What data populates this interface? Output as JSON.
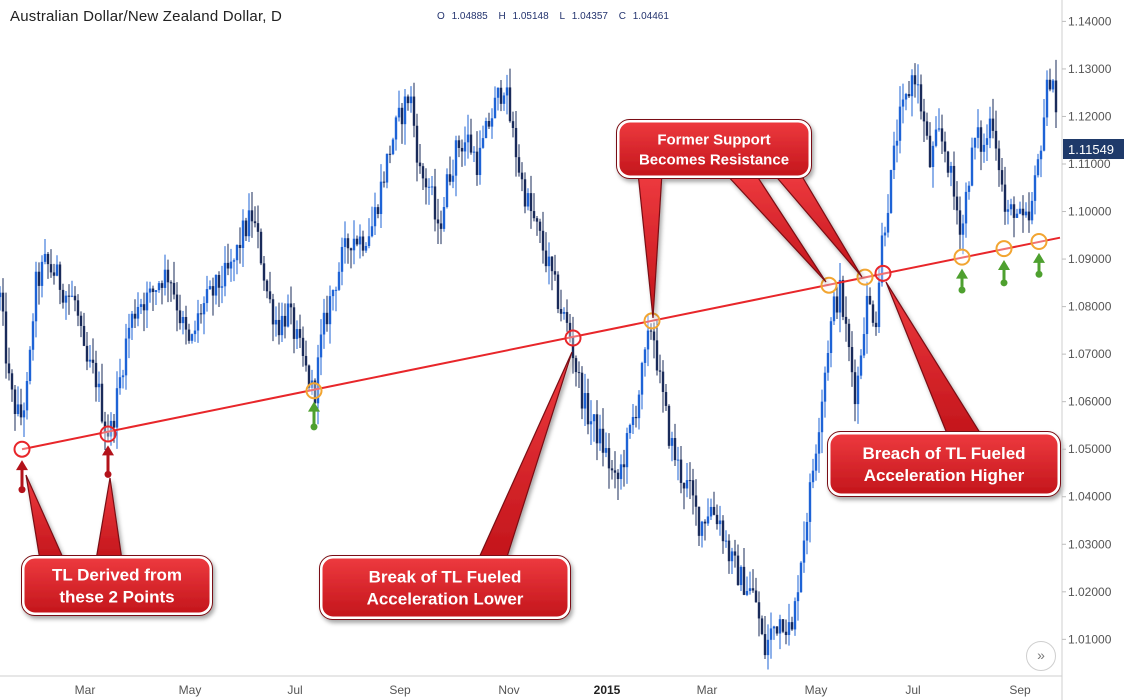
{
  "header": {
    "title": "Australian Dollar/New Zealand Dollar, D",
    "ohlc": [
      {
        "label": "O",
        "value": "1.04885"
      },
      {
        "label": "H",
        "value": "1.05148"
      },
      {
        "label": "L",
        "value": "1.04357"
      },
      {
        "label": "C",
        "value": "1.04461"
      }
    ]
  },
  "colors": {
    "candles": "#1e63d6",
    "candles_dark": "#1a2b5a",
    "trendline": "#e8262a",
    "callout_fill": "#dd1b22",
    "callout_border": "#7a0f12",
    "circle_red": "#e8262a",
    "circle_orange": "#f2a531",
    "arrow_red": "#b3121a",
    "arrow_green": "#4ea02f",
    "price_badge": "#1f3a6a"
  },
  "chart_data": {
    "type": "candlestick",
    "y_ticks": [
      "1.01000",
      "1.02000",
      "1.03000",
      "1.04000",
      "1.05000",
      "1.06000",
      "1.07000",
      "1.08000",
      "1.09000",
      "1.10000",
      "1.11000",
      "1.12000",
      "1.13000",
      "1.14000"
    ],
    "x_ticks": [
      "Mar",
      "May",
      "Jul",
      "Sep",
      "Nov",
      "2015",
      "Mar",
      "May",
      "Jul",
      "Sep"
    ],
    "current_price": "1.11549",
    "ylim": [
      1.0025,
      1.1445
    ],
    "xlim": [
      0,
      1060
    ],
    "close_path": [
      [
        0,
        1.082
      ],
      [
        10,
        1.062
      ],
      [
        20,
        1.056
      ],
      [
        28,
        1.063
      ],
      [
        35,
        1.084
      ],
      [
        45,
        1.089
      ],
      [
        55,
        1.087
      ],
      [
        65,
        1.083
      ],
      [
        75,
        1.081
      ],
      [
        85,
        1.068
      ],
      [
        95,
        1.066
      ],
      [
        105,
        1.055
      ],
      [
        110,
        1.053
      ],
      [
        118,
        1.062
      ],
      [
        128,
        1.075
      ],
      [
        138,
        1.081
      ],
      [
        150,
        1.082
      ],
      [
        160,
        1.086
      ],
      [
        170,
        1.087
      ],
      [
        180,
        1.078
      ],
      [
        190,
        1.071
      ],
      [
        200,
        1.079
      ],
      [
        210,
        1.082
      ],
      [
        220,
        1.085
      ],
      [
        232,
        1.088
      ],
      [
        242,
        1.095
      ],
      [
        252,
        1.099
      ],
      [
        260,
        1.092
      ],
      [
        268,
        1.082
      ],
      [
        278,
        1.076
      ],
      [
        288,
        1.079
      ],
      [
        298,
        1.072
      ],
      [
        308,
        1.065
      ],
      [
        314,
        1.061
      ],
      [
        322,
        1.074
      ],
      [
        332,
        1.083
      ],
      [
        342,
        1.09
      ],
      [
        352,
        1.095
      ],
      [
        362,
        1.094
      ],
      [
        372,
        1.097
      ],
      [
        382,
        1.106
      ],
      [
        392,
        1.115
      ],
      [
        402,
        1.121
      ],
      [
        410,
        1.125
      ],
      [
        420,
        1.108
      ],
      [
        430,
        1.105
      ],
      [
        438,
        1.095
      ],
      [
        448,
        1.107
      ],
      [
        458,
        1.114
      ],
      [
        468,
        1.115
      ],
      [
        478,
        1.11
      ],
      [
        488,
        1.118
      ],
      [
        498,
        1.124
      ],
      [
        504,
        1.127
      ],
      [
        512,
        1.117
      ],
      [
        522,
        1.106
      ],
      [
        532,
        1.099
      ],
      [
        542,
        1.093
      ],
      [
        552,
        1.086
      ],
      [
        560,
        1.08
      ],
      [
        570,
        1.074
      ],
      [
        578,
        1.065
      ],
      [
        586,
        1.058
      ],
      [
        596,
        1.054
      ],
      [
        606,
        1.049
      ],
      [
        616,
        1.042
      ],
      [
        626,
        1.05
      ],
      [
        636,
        1.059
      ],
      [
        646,
        1.07
      ],
      [
        652,
        1.077
      ],
      [
        660,
        1.064
      ],
      [
        670,
        1.052
      ],
      [
        680,
        1.045
      ],
      [
        690,
        1.041
      ],
      [
        700,
        1.034
      ],
      [
        710,
        1.038
      ],
      [
        720,
        1.035
      ],
      [
        730,
        1.027
      ],
      [
        740,
        1.023
      ],
      [
        748,
        1.021
      ],
      [
        756,
        1.018
      ],
      [
        764,
        1.007
      ],
      [
        772,
        1.012
      ],
      [
        782,
        1.015
      ],
      [
        792,
        1.011
      ],
      [
        800,
        1.026
      ],
      [
        810,
        1.041
      ],
      [
        820,
        1.058
      ],
      [
        828,
        1.072
      ],
      [
        834,
        1.08
      ],
      [
        840,
        1.083
      ],
      [
        848,
        1.072
      ],
      [
        856,
        1.061
      ],
      [
        866,
        1.081
      ],
      [
        876,
        1.078
      ],
      [
        882,
        1.094
      ],
      [
        890,
        1.105
      ],
      [
        898,
        1.118
      ],
      [
        906,
        1.123
      ],
      [
        914,
        1.13
      ],
      [
        922,
        1.121
      ],
      [
        930,
        1.11
      ],
      [
        938,
        1.116
      ],
      [
        946,
        1.113
      ],
      [
        954,
        1.103
      ],
      [
        962,
        1.096
      ],
      [
        968,
        1.107
      ],
      [
        976,
        1.116
      ],
      [
        984,
        1.113
      ],
      [
        992,
        1.121
      ],
      [
        1000,
        1.109
      ],
      [
        1006,
        1.098
      ],
      [
        1014,
        1.101
      ],
      [
        1022,
        1.097
      ],
      [
        1030,
        1.098
      ],
      [
        1038,
        1.11
      ],
      [
        1046,
        1.124
      ],
      [
        1052,
        1.131
      ],
      [
        1058,
        1.115
      ]
    ]
  },
  "annotations": {
    "trendline": {
      "from": [
        22,
        1.05
      ],
      "to": [
        1060,
        1.0945
      ]
    },
    "circles": [
      {
        "x": 22,
        "y": 1.05,
        "kind": "red"
      },
      {
        "x": 108,
        "y": 1.0532,
        "kind": "red"
      },
      {
        "x": 314,
        "y": 1.0623,
        "kind": "orange"
      },
      {
        "x": 573,
        "y": 1.0734,
        "kind": "red"
      },
      {
        "x": 652,
        "y": 1.077,
        "kind": "orange"
      },
      {
        "x": 829,
        "y": 1.0845,
        "kind": "orange"
      },
      {
        "x": 865,
        "y": 1.0862,
        "kind": "orange"
      },
      {
        "x": 883,
        "y": 1.087,
        "kind": "red"
      },
      {
        "x": 962,
        "y": 1.0904,
        "kind": "orange"
      },
      {
        "x": 1004,
        "y": 1.0922,
        "kind": "orange"
      },
      {
        "x": 1039,
        "y": 1.0937,
        "kind": "orange"
      }
    ],
    "arrows_red": [
      {
        "x": 22,
        "y_tip": 1.0477,
        "y_tail": 1.0415
      },
      {
        "x": 108,
        "y_tip": 1.0508,
        "y_tail": 1.0447
      }
    ],
    "arrows_green": [
      {
        "x": 314,
        "y_tip": 1.06,
        "y_tail": 1.0547
      },
      {
        "x": 962,
        "y_tip": 1.088,
        "y_tail": 1.0835
      },
      {
        "x": 1004,
        "y_tip": 1.0898,
        "y_tail": 1.085
      },
      {
        "x": 1039,
        "y_tip": 1.0913,
        "y_tail": 1.0868
      }
    ],
    "callouts": [
      {
        "id": "tl-derived",
        "lines": [
          "TL Derived from",
          "these 2 Points"
        ]
      },
      {
        "id": "break-lower",
        "lines": [
          "Break of TL Fueled",
          "Acceleration Lower"
        ]
      },
      {
        "id": "former-support",
        "lines": [
          "Former Support",
          "Becomes Resistance"
        ]
      },
      {
        "id": "breach-higher",
        "lines": [
          "Breach of TL Fueled",
          "Acceleration Higher"
        ]
      }
    ]
  },
  "nav": {
    "scroll_icon": "»"
  }
}
